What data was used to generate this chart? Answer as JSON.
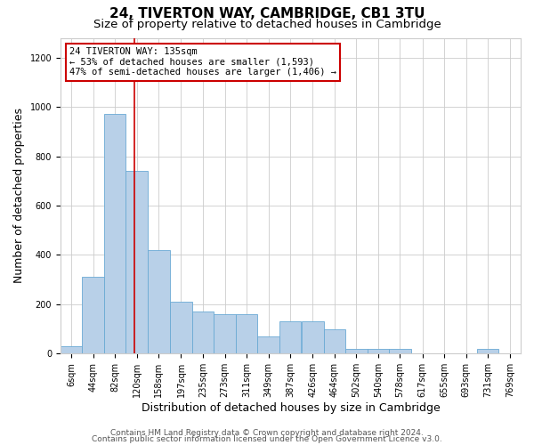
{
  "title": "24, TIVERTON WAY, CAMBRIDGE, CB1 3TU",
  "subtitle": "Size of property relative to detached houses in Cambridge",
  "xlabel": "Distribution of detached houses by size in Cambridge",
  "ylabel": "Number of detached properties",
  "annotation_line1": "24 TIVERTON WAY: 135sqm",
  "annotation_line2": "← 53% of detached houses are smaller (1,593)",
  "annotation_line3": "47% of semi-detached houses are larger (1,406) →",
  "property_size_sqm": 135,
  "footer1": "Contains HM Land Registry data © Crown copyright and database right 2024.",
  "footer2": "Contains public sector information licensed under the Open Government Licence v3.0.",
  "bin_labels": [
    "6sqm",
    "44sqm",
    "82sqm",
    "120sqm",
    "158sqm",
    "197sqm",
    "235sqm",
    "273sqm",
    "311sqm",
    "349sqm",
    "387sqm",
    "426sqm",
    "464sqm",
    "502sqm",
    "540sqm",
    "578sqm",
    "617sqm",
    "655sqm",
    "693sqm",
    "731sqm",
    "769sqm"
  ],
  "bin_left_edges": [
    6,
    44,
    82,
    120,
    158,
    197,
    235,
    273,
    311,
    349,
    387,
    426,
    464,
    502,
    540,
    578,
    617,
    655,
    693,
    731,
    769
  ],
  "bin_width": 38,
  "bar_heights": [
    30,
    310,
    970,
    740,
    420,
    210,
    170,
    160,
    160,
    70,
    130,
    130,
    100,
    20,
    20,
    20,
    0,
    0,
    0,
    20,
    0
  ],
  "bar_color": "#b8d0e8",
  "bar_edge_color": "#6aaad4",
  "vline_x": 135,
  "vline_color": "#cc0000",
  "annotation_box_color": "#cc0000",
  "ylim": [
    0,
    1280
  ],
  "yticks": [
    0,
    200,
    400,
    600,
    800,
    1000,
    1200
  ],
  "xlim_left": 6,
  "xlim_right": 807,
  "background_color": "#ffffff",
  "grid_color": "#cccccc",
  "title_fontsize": 11,
  "subtitle_fontsize": 9.5,
  "axis_label_fontsize": 9,
  "tick_fontsize": 7,
  "annotation_fontsize": 7.5,
  "footer_fontsize": 6.5
}
